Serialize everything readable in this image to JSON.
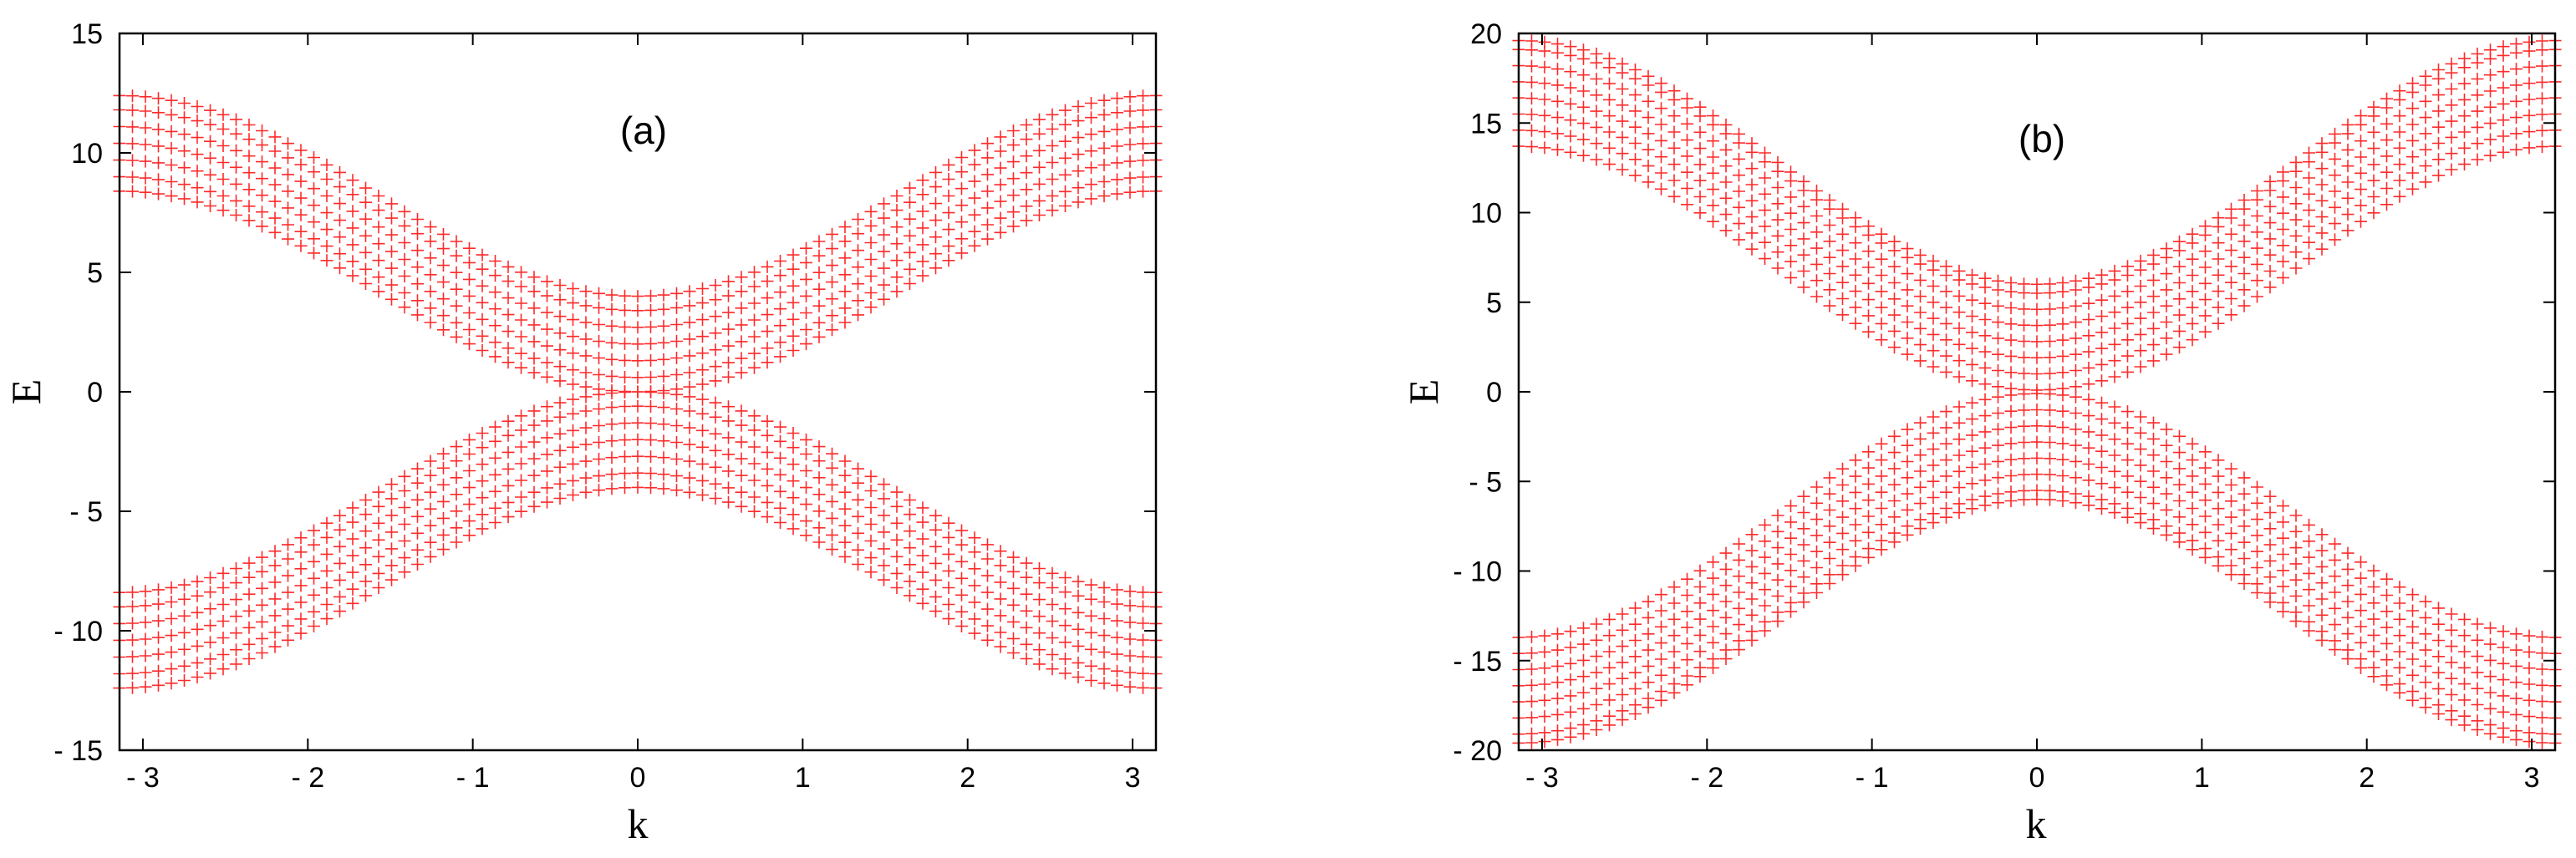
{
  "chart_data": [
    {
      "type": "scatter",
      "panel_label": "(a)",
      "xlabel": "k",
      "ylabel": "E",
      "xlim": [
        -3.14159,
        3.14159
      ],
      "ylim": [
        -15,
        15
      ],
      "xticks": [
        -3,
        -2,
        -1,
        0,
        1,
        2,
        3
      ],
      "xtick_labels": [
        "- 3",
        "- 2",
        "- 1",
        "0",
        "1",
        "2",
        "3"
      ],
      "yticks": [
        15,
        10,
        5,
        0,
        -5,
        -10,
        -15
      ],
      "ytick_labels": [
        "15",
        "10",
        "5",
        "0",
        "- 5",
        "- 10",
        "- 15"
      ],
      "marker": "+",
      "color": "#ff2a2a",
      "n_k_points": 81,
      "bands": {
        "formula": "E = ±(c + a·(1 - cos k))",
        "amplitude_a": 4.2,
        "offsets_c": [
          0.0,
          0.6,
          1.3,
          2.0,
          2.7,
          3.4,
          4.0
        ]
      }
    },
    {
      "type": "scatter",
      "panel_label": "(b)",
      "xlabel": "k",
      "ylabel": "E",
      "xlim": [
        -3.14159,
        3.14159
      ],
      "ylim": [
        -20,
        20
      ],
      "xticks": [
        -3,
        -2,
        -1,
        0,
        1,
        2,
        3
      ],
      "xtick_labels": [
        "- 3",
        "- 2",
        "- 1",
        "0",
        "1",
        "2",
        "3"
      ],
      "yticks": [
        20,
        15,
        10,
        5,
        0,
        -5,
        -10,
        -15,
        -20
      ],
      "ytick_labels": [
        "20",
        "15",
        "10",
        "5",
        "0",
        "- 5",
        "- 10",
        "- 15",
        "- 20"
      ],
      "marker": "+",
      "color": "#ff2a2a",
      "n_k_points": 81,
      "bands": {
        "formula": "E = ±(c + a·(1 - cos k))",
        "amplitude_a": 6.8,
        "offsets_c": [
          0.1,
          1.0,
          1.9,
          2.8,
          3.7,
          4.6,
          5.5,
          6.0
        ]
      }
    }
  ]
}
